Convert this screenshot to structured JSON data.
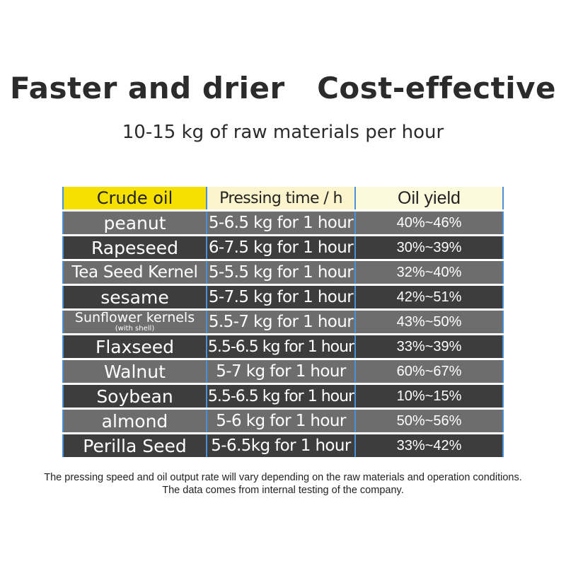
{
  "headline": "Faster and drier   Cost-effective",
  "subheadline": "10-15 kg of raw materials per hour",
  "table": {
    "headers": [
      "Crude oil",
      "Pressing time / h",
      "Oil yield"
    ],
    "rows": [
      {
        "material": "peanut",
        "material_note": "",
        "pressing": "5-6.5 kg for 1 hour",
        "yield": "40%~46%"
      },
      {
        "material": "Rapeseed",
        "material_note": "",
        "pressing": "6-7.5 kg for 1 hour",
        "yield": "30%~39%"
      },
      {
        "material": "Tea Seed Kernel",
        "material_note": "",
        "pressing": "5-5.5 kg for 1 hour",
        "yield": "32%~40%"
      },
      {
        "material": "sesame",
        "material_note": "",
        "pressing": "5-7.5 kg for 1 hour",
        "yield": "42%~51%"
      },
      {
        "material": "Sunflower kernels",
        "material_note": "(with shell)",
        "pressing": "5.5-7 kg for 1 hour",
        "yield": "43%~50%"
      },
      {
        "material": "Flaxseed",
        "material_note": "",
        "pressing": "5.5-6.5 kg for 1 hour",
        "yield": "33%~39%"
      },
      {
        "material": "Walnut",
        "material_note": "",
        "pressing": "5-7 kg for 1 hour",
        "yield": "60%~67%"
      },
      {
        "material": "Soybean",
        "material_note": "",
        "pressing": "5.5-6.5 kg for 1 hour",
        "yield": "10%~15%"
      },
      {
        "material": "almond",
        "material_note": "",
        "pressing": "5-6 kg for 1 hour",
        "yield": "50%~56%"
      },
      {
        "material": "Perilla Seed",
        "material_note": "",
        "pressing": "5-6.5kg for 1 hour",
        "yield": "33%~42%"
      }
    ]
  },
  "footnote": {
    "line1": "The pressing speed and oil output rate will vary depending on the raw materials and operation conditions.",
    "line2": "The data comes from internal testing of the company."
  },
  "colors": {
    "header_accent": "#f5e000",
    "row_light": "#6d6d6d",
    "row_dark": "#3d3d3d",
    "grid_line": "#4a90d9"
  }
}
